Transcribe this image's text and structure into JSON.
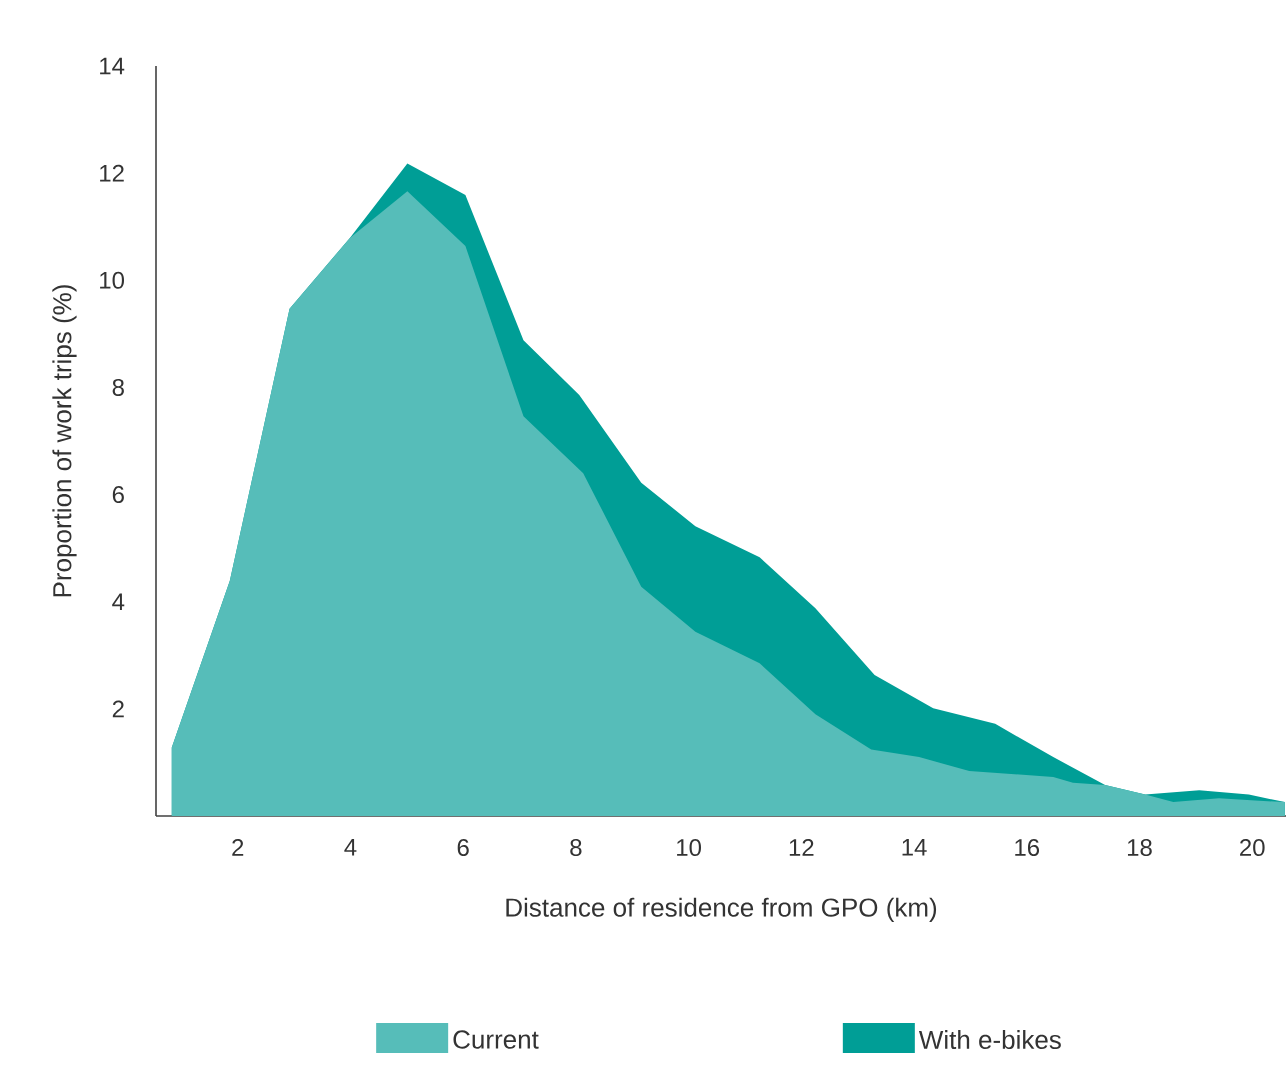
{
  "chart_data": {
    "type": "area",
    "xlabel": "Distance of residence from GPO (km)",
    "ylabel": "Proportion of work trips (%)",
    "xlim": [
      0.55,
      20.6
    ],
    "ylim": [
      0,
      14
    ],
    "xticks": [
      2,
      4,
      6,
      8,
      10,
      12,
      14,
      16,
      18,
      20
    ],
    "yticks": [
      2,
      4,
      6,
      8,
      10,
      12,
      14
    ],
    "grid": false,
    "legend": "bottom",
    "series": [
      {
        "name": "Current",
        "color": "#56bdb9",
        "x": [
          0.83,
          1.86,
          2.92,
          3.99,
          5.01,
          6.04,
          7.07,
          8.13,
          9.16,
          10.12,
          11.26,
          12.25,
          13.24,
          14.09,
          14.98,
          16.47,
          16.82,
          17.39,
          18.1,
          18.6,
          19.41,
          20.05,
          20.58
        ],
        "values": [
          1.28,
          4.39,
          9.47,
          10.79,
          11.66,
          10.64,
          7.46,
          6.4,
          4.28,
          3.44,
          2.85,
          1.9,
          1.24,
          1.1,
          0.84,
          0.73,
          0.62,
          0.58,
          0.4,
          0.26,
          0.33,
          0.29,
          0.26
        ]
      },
      {
        "name": "With e-bikes",
        "color": "#009e96",
        "x": [
          0.83,
          1.86,
          2.92,
          3.99,
          5.01,
          6.04,
          7.07,
          8.06,
          9.16,
          10.12,
          11.26,
          12.25,
          13.3,
          14.34,
          15.44,
          16.47,
          17.39,
          18.1,
          19.06,
          19.94,
          20.58
        ],
        "values": [
          1.28,
          4.39,
          9.47,
          10.79,
          12.18,
          11.59,
          8.88,
          7.86,
          6.22,
          5.41,
          4.83,
          3.88,
          2.63,
          2.01,
          1.72,
          1.1,
          0.58,
          0.4,
          0.48,
          0.4,
          0.26
        ]
      }
    ]
  }
}
